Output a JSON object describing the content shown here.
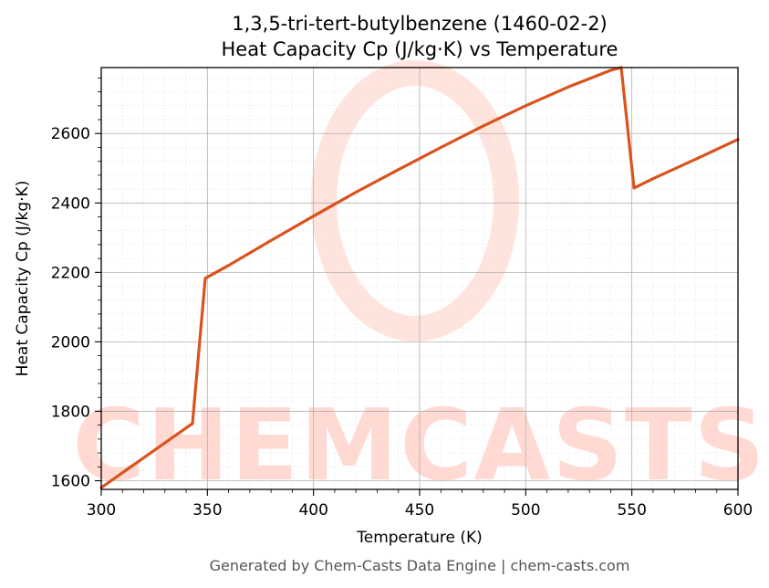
{
  "chart_data": {
    "type": "line",
    "title": "1,3,5-tri-tert-butylbenzene (1460-02-2)",
    "subtitle": "Heat Capacity Cp (J/kg·K) vs Temperature",
    "xlabel": "Temperature (K)",
    "ylabel": "Heat Capacity Cp (J/kg·K)",
    "xlim": [
      300,
      600
    ],
    "ylim": [
      1575,
      2790
    ],
    "xticks": [
      300,
      350,
      400,
      450,
      500,
      550,
      600
    ],
    "yticks": [
      1600,
      1800,
      2000,
      2200,
      2400,
      2600
    ],
    "grid": true,
    "line_color": "#d9531e",
    "series": [
      {
        "x": [
          300,
          343,
          349,
          360,
          380,
          400,
          420,
          440,
          460,
          480,
          500,
          520,
          540,
          545,
          551,
          560,
          580,
          600
        ],
        "y": [
          1580,
          1765,
          2183,
          2220,
          2292,
          2362,
          2431,
          2496,
          2560,
          2622,
          2680,
          2734,
          2782,
          2790,
          2443,
          2470,
          2526,
          2583
        ]
      }
    ]
  },
  "footer": "Generated by Chem-Casts Data Engine | chem-casts.com",
  "watermark": "CHEMCASTS"
}
